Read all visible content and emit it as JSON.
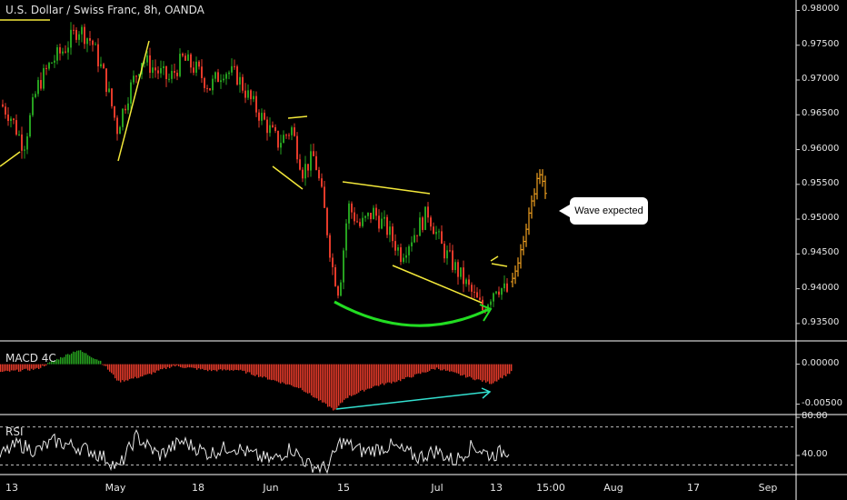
{
  "title": "U.S. Dollar / Swiss Franc, 8h, OANDA",
  "callout_text": "Wave expected",
  "colors": {
    "up": "#26a11f",
    "down": "#e53a2a",
    "forecast": "#f0a020",
    "trendline": "#f3e83a",
    "arc": "#22dd22",
    "divergence": "#33e0d0",
    "rsi_line": "#e6e6e6",
    "grid": "#ffffff"
  },
  "chart_data": [
    {
      "type": "candlestick",
      "pane": "price",
      "ylim": [
        0.9325,
        0.9815
      ],
      "y_ticks": [
        "0.98000",
        "0.97500",
        "0.97000",
        "0.96500",
        "0.96000",
        "0.95500",
        "0.95000",
        "0.94500",
        "0.94000",
        "0.93500"
      ],
      "x_ticks": [
        "13",
        "May",
        "18",
        "Jun",
        "15",
        "Jul",
        "13",
        "15:00",
        "Aug",
        "17",
        "Sep"
      ],
      "close_path": [
        [
          0,
          0.9665
        ],
        [
          10,
          0.965
        ],
        [
          25,
          0.9605
        ],
        [
          40,
          0.969
        ],
        [
          55,
          0.9725
        ],
        [
          70,
          0.9745
        ],
        [
          85,
          0.9775
        ],
        [
          100,
          0.9755
        ],
        [
          115,
          0.97
        ],
        [
          128,
          0.963
        ],
        [
          140,
          0.968
        ],
        [
          155,
          0.973
        ],
        [
          170,
          0.9715
        ],
        [
          185,
          0.97
        ],
        [
          200,
          0.973
        ],
        [
          215,
          0.9715
        ],
        [
          230,
          0.969
        ],
        [
          245,
          0.9715
        ],
        [
          260,
          0.9705
        ],
        [
          275,
          0.967
        ],
        [
          290,
          0.964
        ],
        [
          305,
          0.961
        ],
        [
          320,
          0.963
        ],
        [
          332,
          0.957
        ],
        [
          345,
          0.959
        ],
        [
          355,
          0.952
        ],
        [
          365,
          0.943
        ],
        [
          372,
          0.9395
        ],
        [
          382,
          0.952
        ],
        [
          395,
          0.949
        ],
        [
          410,
          0.951
        ],
        [
          425,
          0.9485
        ],
        [
          440,
          0.945
        ],
        [
          455,
          0.948
        ],
        [
          470,
          0.951
        ],
        [
          485,
          0.946
        ],
        [
          500,
          0.943
        ],
        [
          515,
          0.94
        ],
        [
          530,
          0.937
        ],
        [
          545,
          0.9405
        ],
        [
          558,
          0.9395
        ]
      ],
      "forecast_path": [
        [
          563,
          0.941
        ],
        [
          570,
          0.9445
        ],
        [
          578,
          0.949
        ],
        [
          585,
          0.953
        ],
        [
          592,
          0.9565
        ],
        [
          600,
          0.9535
        ]
      ]
    },
    {
      "type": "bar",
      "pane": "MACD 4C",
      "ylim": [
        -0.0063,
        0.0028
      ],
      "y_ticks": [
        "0.00000",
        "-0.00500"
      ],
      "values_path": [
        [
          0,
          -0.001
        ],
        [
          40,
          -0.0006
        ],
        [
          60,
          0.0005
        ],
        [
          85,
          0.0018
        ],
        [
          110,
          0.0004
        ],
        [
          130,
          -0.0022
        ],
        [
          160,
          -0.0014
        ],
        [
          190,
          -0.0002
        ],
        [
          230,
          -0.0008
        ],
        [
          260,
          -0.0007
        ],
        [
          300,
          -0.002
        ],
        [
          330,
          -0.003
        ],
        [
          350,
          -0.0045
        ],
        [
          368,
          -0.0058
        ],
        [
          380,
          -0.0042
        ],
        [
          410,
          -0.0028
        ],
        [
          440,
          -0.002
        ],
        [
          480,
          -0.0005
        ],
        [
          520,
          -0.0018
        ],
        [
          540,
          -0.0024
        ],
        [
          562,
          -0.001
        ]
      ]
    },
    {
      "type": "line",
      "pane": "RSI",
      "ylim": [
        20,
        82
      ],
      "y_ticks": [
        "80.00",
        "40.00"
      ],
      "guides": [
        70,
        30
      ],
      "values_path": [
        [
          0,
          40
        ],
        [
          20,
          52
        ],
        [
          40,
          45
        ],
        [
          60,
          55
        ],
        [
          80,
          50
        ],
        [
          100,
          45
        ],
        [
          120,
          35
        ],
        [
          130,
          26
        ],
        [
          150,
          60
        ],
        [
          175,
          40
        ],
        [
          200,
          55
        ],
        [
          230,
          42
        ],
        [
          255,
          50
        ],
        [
          285,
          38
        ],
        [
          300,
          35
        ],
        [
          320,
          48
        ],
        [
          340,
          30
        ],
        [
          360,
          26
        ],
        [
          375,
          55
        ],
        [
          400,
          44
        ],
        [
          430,
          50
        ],
        [
          460,
          38
        ],
        [
          480,
          45
        ],
        [
          500,
          34
        ],
        [
          520,
          50
        ],
        [
          540,
          40
        ],
        [
          560,
          46
        ]
      ]
    }
  ]
}
